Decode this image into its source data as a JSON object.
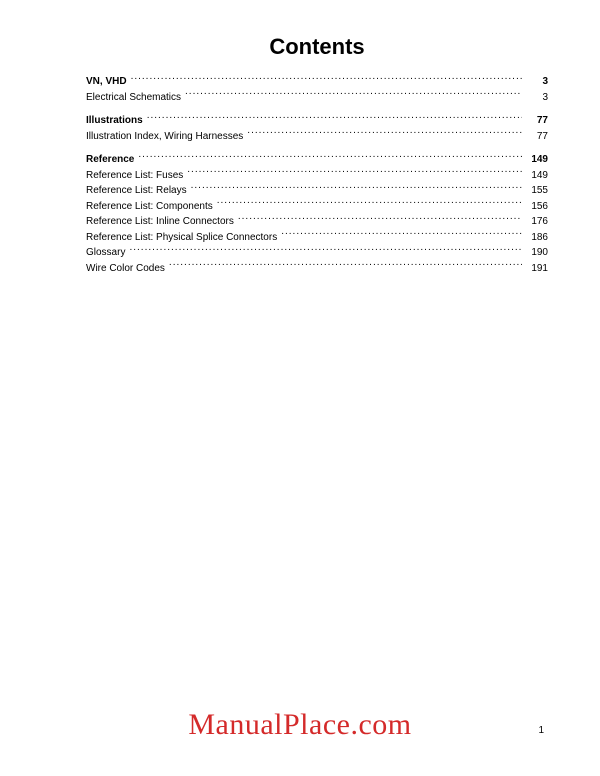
{
  "title": "Contents",
  "watermark": "ManualPlace.com",
  "page_number": "1",
  "colors": {
    "background": "#ffffff",
    "text": "#000000",
    "watermark": "#d42a2a"
  },
  "typography": {
    "title_fontsize": 22,
    "title_weight": "bold",
    "row_fontsize": 10,
    "watermark_fontsize": 30,
    "watermark_family": "serif"
  },
  "toc": {
    "groups": [
      {
        "rows": [
          {
            "label": "VN, VHD",
            "page": "3",
            "bold": true
          },
          {
            "label": "Electrical Schematics",
            "page": "3",
            "bold": false
          }
        ]
      },
      {
        "rows": [
          {
            "label": "Illustrations",
            "page": "77",
            "bold": true
          },
          {
            "label": "Illustration Index, Wiring Harnesses",
            "page": "77",
            "bold": false
          }
        ]
      },
      {
        "rows": [
          {
            "label": "Reference",
            "page": "149",
            "bold": true
          },
          {
            "label": "Reference List: Fuses",
            "page": "149",
            "bold": false
          },
          {
            "label": "Reference List: Relays",
            "page": "155",
            "bold": false
          },
          {
            "label": "Reference List: Components",
            "page": "156",
            "bold": false
          },
          {
            "label": "Reference List: Inline Connectors",
            "page": "176",
            "bold": false
          },
          {
            "label": "Reference List: Physical Splice Connectors",
            "page": "186",
            "bold": false
          },
          {
            "label": "Glossary",
            "page": "190",
            "bold": false
          },
          {
            "label": "Wire Color Codes",
            "page": "191",
            "bold": false
          }
        ]
      }
    ]
  }
}
